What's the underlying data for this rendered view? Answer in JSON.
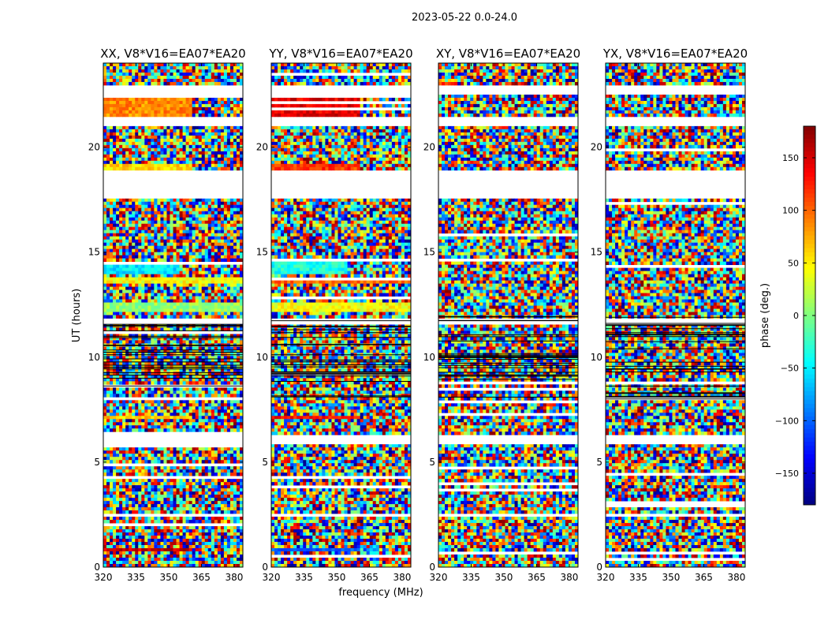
{
  "figure": {
    "suptitle": "2023-05-22 0.0-24.0",
    "xlabel": "frequency (MHz)",
    "ylabel": "UT (hours)"
  },
  "colorbar": {
    "label": "phase (deg.)",
    "range": [
      -180,
      180
    ],
    "ticks": [
      -150,
      -100,
      -50,
      0,
      50,
      100,
      150
    ],
    "tick_labels": [
      "−150",
      "−100",
      "−50",
      "0",
      "50",
      "100",
      "150"
    ],
    "colormap": "jet",
    "colors": [
      "#00007f",
      "#0000ff",
      "#007fff",
      "#00ffff",
      "#7fff7f",
      "#ffff00",
      "#ff7f00",
      "#ff0000",
      "#7f0000"
    ]
  },
  "chart_data": {
    "type": "heatmap",
    "xlim": [
      320,
      384
    ],
    "ylim": [
      0,
      24
    ],
    "x_ticks": [
      320,
      335,
      350,
      365,
      380
    ],
    "y_ticks": [
      0,
      5,
      10,
      15,
      20
    ],
    "x_tick_labels": [
      "320",
      "335",
      "350",
      "365",
      "380"
    ],
    "y_tick_labels": [
      "0",
      "5",
      "10",
      "15",
      "20"
    ],
    "panels": [
      {
        "title": "XX, V8*V16=EA07*EA20",
        "polarization": "XX"
      },
      {
        "title": "YY, V8*V16=EA07*EA20",
        "polarization": "YY"
      },
      {
        "title": "XY, V8*V16=EA07*EA20",
        "polarization": "XY"
      },
      {
        "title": "YX, V8*V16=EA07*EA20",
        "polarization": "YX"
      }
    ],
    "data_gaps_ut": [
      [
        2.4,
        2.6
      ],
      [
        5.9,
        6.3
      ],
      [
        11.6,
        11.8
      ],
      [
        17.6,
        18.9
      ],
      [
        21.0,
        21.5
      ],
      [
        22.5,
        22.9
      ]
    ],
    "value_range": [
      -180,
      180
    ],
    "values": "dense phase noise (deg.) per time/frequency cell; coherent bands in XX/YY near UT 0.8, 7.1, 12.4, 13.7, 19.0, 21.8"
  }
}
